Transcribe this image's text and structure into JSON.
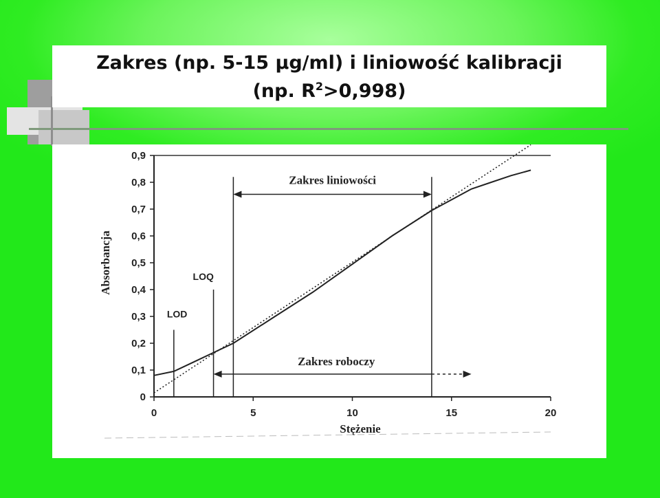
{
  "slide": {
    "title_line1": "Zakres (np. 5-15 µg/ml) i liniowość kalibracji",
    "title_line2_prefix": "(np. R",
    "title_line2_sup": "2",
    "title_line2_suffix": ">0,998)",
    "background_color": "#22e81a"
  },
  "chart_data": {
    "type": "line",
    "xlabel": "Stężenie",
    "ylabel": "Absorbancja",
    "xlim": [
      0,
      20
    ],
    "ylim": [
      0,
      0.9
    ],
    "x_ticks": [
      0,
      5,
      10,
      15,
      20
    ],
    "x_tick_labels": [
      "0",
      "5",
      "10",
      "15",
      "20"
    ],
    "y_ticks": [
      0,
      0.1,
      0.2,
      0.3,
      0.4,
      0.5,
      0.6,
      0.7,
      0.8,
      0.9
    ],
    "y_tick_labels": [
      "0",
      "0,1",
      "0,2",
      "0,3",
      "0,4",
      "0,5",
      "0,6",
      "0,7",
      "0,8",
      "0,9"
    ],
    "series": [
      {
        "style": "solid",
        "x": [
          0,
          1,
          2,
          3,
          4,
          6,
          8,
          10,
          12,
          14,
          15,
          16,
          17,
          18,
          19
        ],
        "y": [
          0.08,
          0.095,
          0.13,
          0.165,
          0.2,
          0.295,
          0.39,
          0.495,
          0.6,
          0.695,
          0.735,
          0.775,
          0.8,
          0.825,
          0.845
        ]
      },
      {
        "style": "dotted",
        "x": [
          0,
          19
        ],
        "y": [
          0.015,
          0.94
        ]
      }
    ],
    "annotations": {
      "lod": {
        "label": "LOD",
        "x": 1,
        "line_top": 0.25
      },
      "loq": {
        "label": "LOQ",
        "x": 3,
        "line_top": 0.4
      },
      "linear_range": {
        "label": "Zakres liniowości",
        "x_start": 4,
        "x_end": 14,
        "y": 0.755,
        "line_top": 0.82
      },
      "working_range": {
        "label": "Zakres roboczy",
        "x_start": 3,
        "x_end": 16,
        "y": 0.085
      }
    }
  }
}
